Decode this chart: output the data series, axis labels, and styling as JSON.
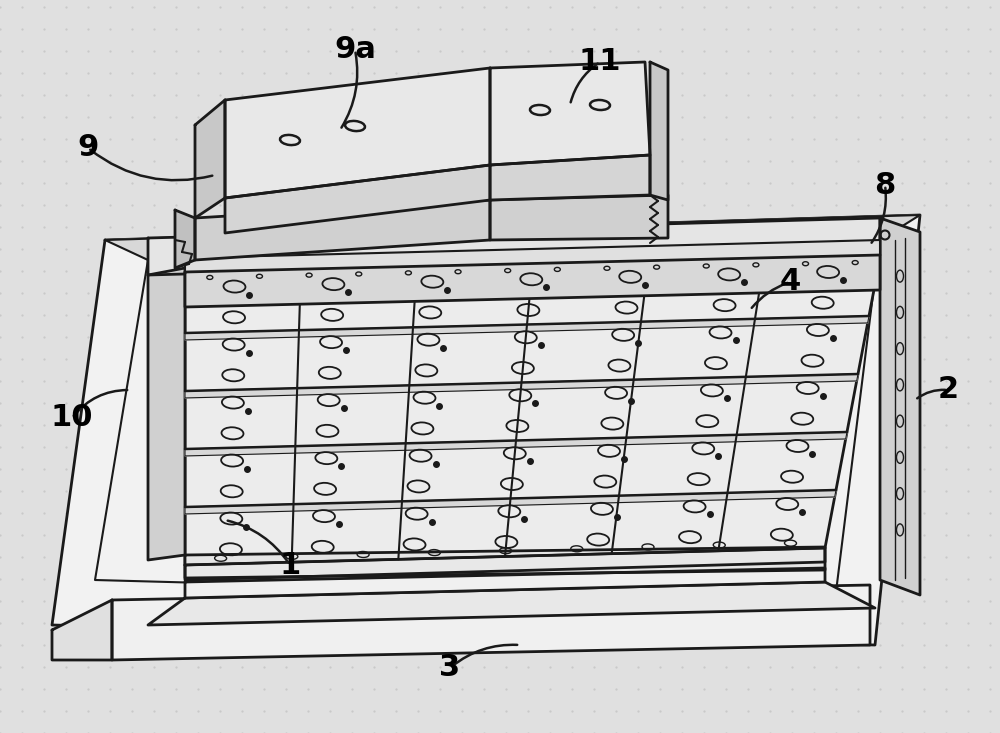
{
  "bg_color": "#e0e0e0",
  "line_color": "#1a1a1a",
  "label_color": "#000000",
  "face_light": "#f2f2f2",
  "face_mid": "#e5e5e5",
  "face_dark": "#d0d0d0",
  "face_darker": "#c0c0c0",
  "label_fontsize": 22,
  "line_width": 1.8
}
